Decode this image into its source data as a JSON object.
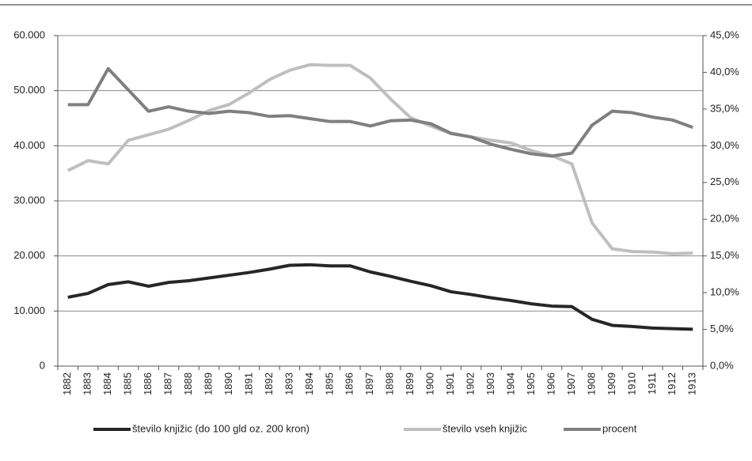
{
  "chart_data": {
    "type": "line",
    "categories": [
      "1882",
      "1883",
      "1884",
      "1885",
      "1886",
      "1887",
      "1888",
      "1889",
      "1890",
      "1891",
      "1892",
      "1893",
      "1894",
      "1895",
      "1896",
      "1897",
      "1898",
      "1899",
      "1900",
      "1901",
      "1902",
      "1903",
      "1904",
      "1905",
      "1906",
      "1907",
      "1908",
      "1909",
      "1910",
      "1911",
      "1912",
      "1913"
    ],
    "series": [
      {
        "name": "število knjižic (do 100 gld oz. 200 kron)",
        "color": "#262626",
        "values": [
          12500,
          13200,
          14800,
          15300,
          14500,
          15200,
          15500,
          16000,
          16500,
          17000,
          17600,
          18300,
          18400,
          18200,
          18200,
          17100,
          16300,
          15400,
          14600,
          13500,
          13000,
          12400,
          11900,
          11300,
          10900,
          10800,
          8500,
          7400,
          7200,
          6900,
          6800,
          6700
        ]
      },
      {
        "name": "število vseh knjižic",
        "color": "#bfbfbf",
        "values": [
          35500,
          37300,
          36700,
          41000,
          42000,
          43000,
          44600,
          46400,
          47500,
          49600,
          52000,
          53700,
          54700,
          54600,
          54600,
          52300,
          48500,
          45100,
          43600,
          42200,
          41600,
          41000,
          40500,
          39100,
          38200,
          36700,
          26000,
          21300,
          20800,
          20700,
          20400,
          20500
        ]
      },
      {
        "name": "procent",
        "color": "#7f7f7f",
        "axis": "y2",
        "values": [
          35.6,
          35.6,
          40.5,
          37.6,
          34.7,
          35.3,
          34.7,
          34.4,
          34.7,
          34.5,
          34.0,
          34.1,
          33.7,
          33.3,
          33.3,
          32.7,
          33.4,
          33.5,
          33.0,
          31.7,
          31.2,
          30.2,
          29.5,
          28.9,
          28.6,
          29.0,
          32.8,
          34.7,
          34.5,
          33.9,
          33.5,
          32.5
        ]
      }
    ],
    "ylim": [
      0,
      60000
    ],
    "yticks": [
      0,
      {
        "value": 10000,
        "label": "10.000"
      },
      {
        "value": 20000,
        "label": "20.000"
      },
      {
        "value": 30000,
        "label": "30.000"
      },
      {
        "value": 40000,
        "label": "40.000"
      },
      {
        "value": 50000,
        "label": "50.000"
      },
      {
        "value": 60000,
        "label": "60.000"
      }
    ],
    "y2lim": [
      0,
      45
    ],
    "y2ticks": [
      {
        "value": 0,
        "label": "0,0%"
      },
      {
        "value": 5,
        "label": "5,0%"
      },
      {
        "value": 10,
        "label": "10,0%"
      },
      {
        "value": 15,
        "label": "15,0%"
      },
      {
        "value": 20,
        "label": "20,0%"
      },
      {
        "value": 25,
        "label": "25,0%"
      },
      {
        "value": 30,
        "label": "30,0%"
      },
      {
        "value": 35,
        "label": "35,0%"
      },
      {
        "value": 40,
        "label": "40,0%"
      },
      {
        "value": 45,
        "label": "45,0%"
      }
    ],
    "grid": true,
    "legend": "bottom"
  }
}
